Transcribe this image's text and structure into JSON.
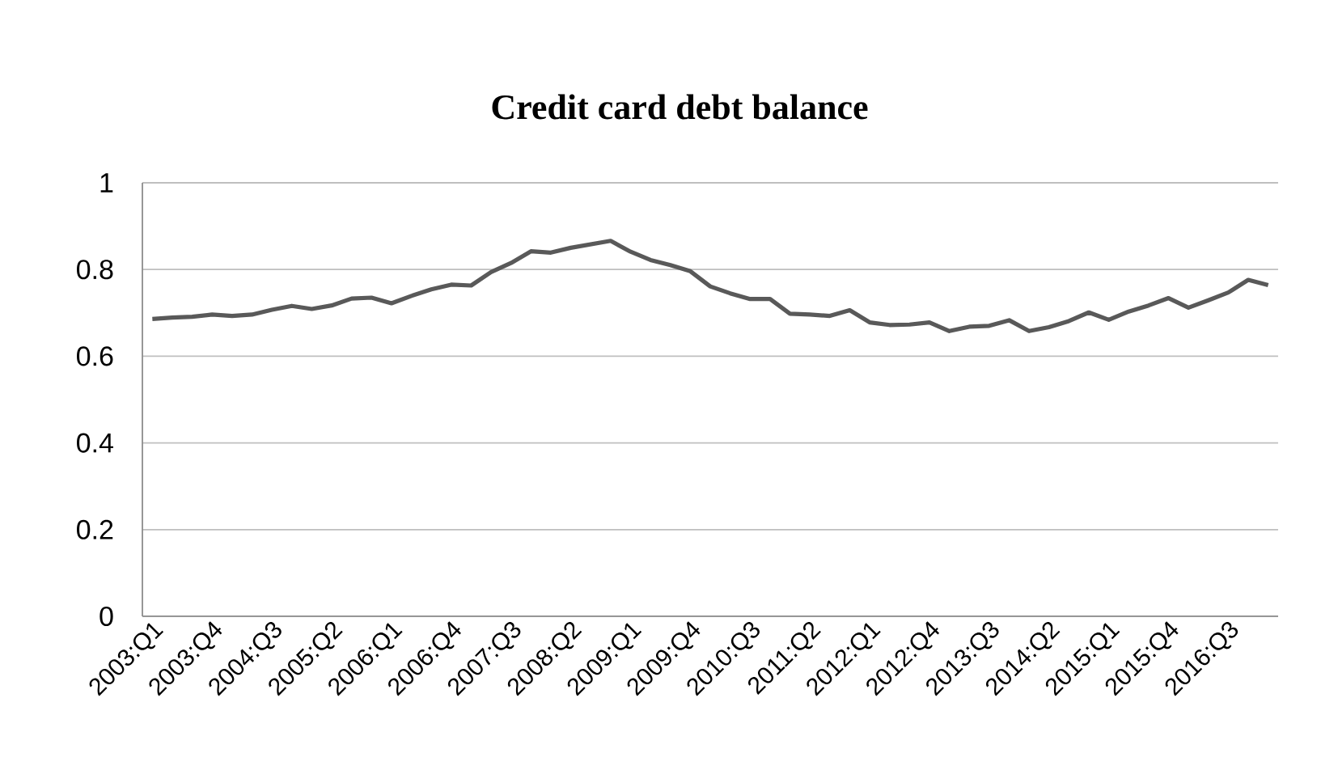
{
  "chart_data": {
    "type": "line",
    "title": "Credit card debt balance",
    "categories": [
      "2003:Q1",
      null,
      null,
      "2003:Q4",
      null,
      null,
      "2004:Q3",
      null,
      null,
      "2005:Q2",
      null,
      null,
      "2006:Q1",
      null,
      null,
      "2006:Q4",
      null,
      null,
      "2007:Q3",
      null,
      null,
      "2008:Q2",
      null,
      null,
      "2009:Q1",
      null,
      null,
      "2009:Q4",
      null,
      null,
      "2010:Q3",
      null,
      null,
      "2011:Q2",
      null,
      null,
      "2012:Q1",
      null,
      null,
      "2012:Q4",
      null,
      null,
      "2013:Q3",
      null,
      null,
      "2014:Q2",
      null,
      null,
      "2015:Q1",
      null,
      null,
      "2015:Q4",
      null,
      null,
      "2016:Q3",
      null,
      null
    ],
    "series": [
      {
        "color": "#595959",
        "values": [
          0.686,
          0.689,
          0.691,
          0.696,
          0.693,
          0.696,
          0.707,
          0.716,
          0.709,
          0.717,
          0.733,
          0.735,
          0.722,
          0.739,
          0.754,
          0.765,
          0.763,
          0.794,
          0.815,
          0.842,
          0.839,
          0.85,
          0.858,
          0.866,
          0.841,
          0.822,
          0.81,
          0.796,
          0.761,
          0.745,
          0.732,
          0.732,
          0.698,
          0.696,
          0.693,
          0.706,
          0.678,
          0.672,
          0.673,
          0.678,
          0.658,
          0.668,
          0.67,
          0.683,
          0.658,
          0.667,
          0.681,
          0.701,
          0.684,
          0.703,
          0.717,
          0.734,
          0.712,
          0.729,
          0.747,
          0.776,
          0.764
        ]
      }
    ],
    "ylim": [
      0,
      1
    ],
    "yticks": [
      0,
      0.2,
      0.4,
      0.6,
      0.8,
      1
    ],
    "grid": "y",
    "legend": false,
    "marker": "none",
    "line_style": "solid"
  }
}
